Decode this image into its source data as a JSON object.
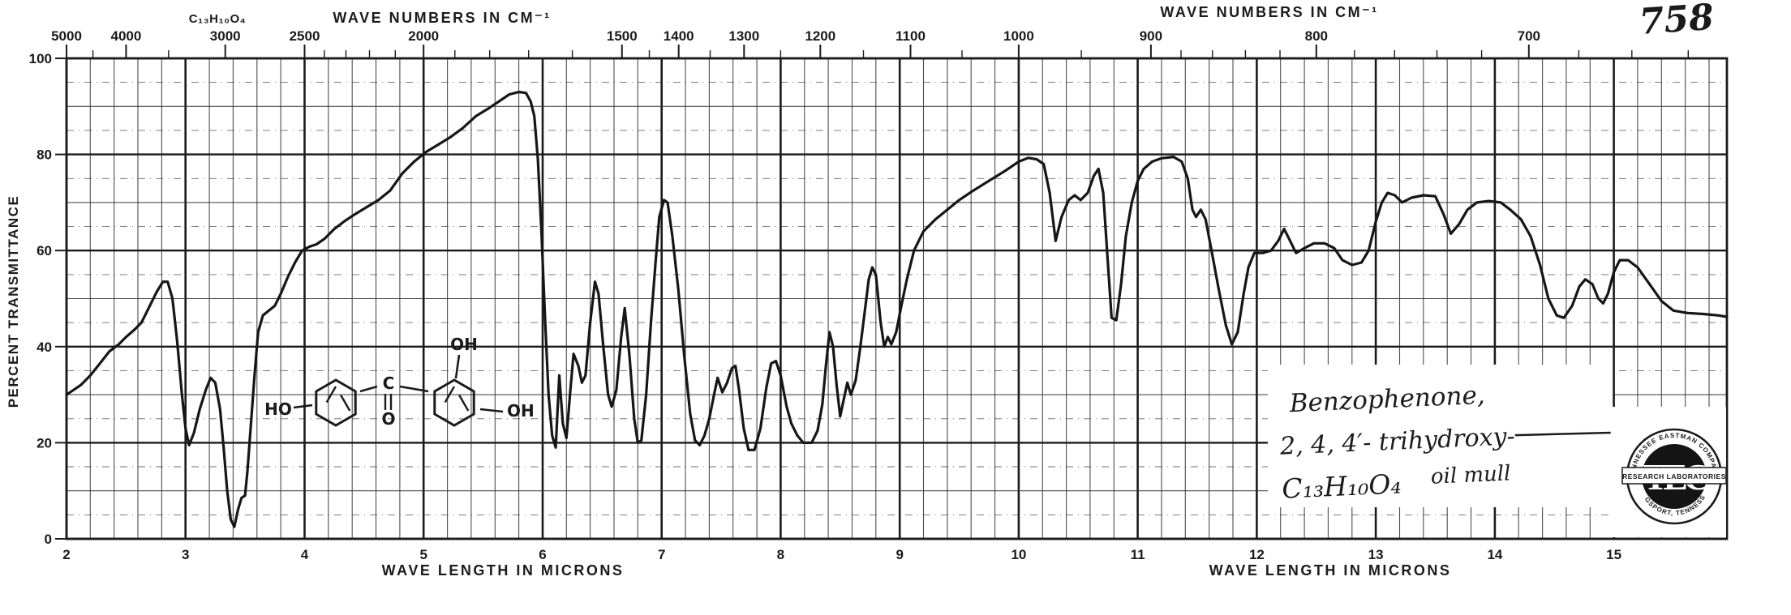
{
  "page": {
    "number": "758",
    "formula_top": "C₁₃H₁₀O₄"
  },
  "axes": {
    "x_top": {
      "label": "WAVE NUMBERS IN CM⁻¹",
      "major_ticks": [
        {
          "wn": 5000,
          "label": "5000"
        },
        {
          "wn": 4000,
          "label": "4000"
        },
        {
          "wn": 3000,
          "label": "3000"
        },
        {
          "wn": 2500,
          "label": "2500"
        },
        {
          "wn": 2000,
          "label": "2000"
        },
        {
          "wn": 1500,
          "label": "1500"
        },
        {
          "wn": 1400,
          "label": "1400"
        },
        {
          "wn": 1300,
          "label": "1300"
        },
        {
          "wn": 1200,
          "label": "1200"
        },
        {
          "wn": 1100,
          "label": "1100"
        },
        {
          "wn": 1000,
          "label": "1000"
        },
        {
          "wn": 900,
          "label": "900"
        },
        {
          "wn": 800,
          "label": "800"
        },
        {
          "wn": 700,
          "label": "700"
        }
      ],
      "minor_ticks": [
        4500,
        3500,
        2400,
        2300,
        2200,
        2100,
        1900,
        1800,
        1700,
        1600,
        1450,
        1350,
        1250,
        1150,
        1050,
        950,
        880,
        860,
        840,
        820,
        780,
        760,
        740,
        720,
        680,
        660,
        640
      ]
    },
    "x_bottom": {
      "label": "WAVE LENGTH IN MICRONS",
      "ticks": [
        "2",
        "3",
        "4",
        "5",
        "6",
        "7",
        "8",
        "9",
        "10",
        "11",
        "12",
        "13",
        "14",
        "15"
      ]
    },
    "y": {
      "label": "PERCENT TRANSMITTANCE",
      "ticks": [
        "100",
        "80",
        "60",
        "40",
        "20",
        "0"
      ]
    }
  },
  "annotation": {
    "line1": "Benzophenone,",
    "line2": "2, 4, 4′- trihydroxy-",
    "line3_formula": "C₁₃H₁₀O₄",
    "line3_note": "oil mull"
  },
  "structure": {
    "ho_left": "HO",
    "carbonyl_c": "C",
    "carbonyl_o": "O",
    "oh_top": "OH",
    "oh_right": "OH"
  },
  "stamp": {
    "arc_top": "TENNESSEE EASTMAN COMPANY",
    "band": "RESEARCH LABORATORIES",
    "arc_bottom": "KINGSPORT, TENNESSEE",
    "monogram": "TEC"
  },
  "colors": {
    "ink": "#1b1b1b",
    "grid": "#2f2f2f",
    "paper": "#ffffff"
  },
  "chart_data": {
    "type": "line",
    "title": "Infrared spectrum: Benzophenone, 2,4,4'-trihydroxy- (C13H10O4), oil mull",
    "xlabel": "WAVE LENGTH IN MICRONS",
    "x2label": "WAVE NUMBERS IN CM⁻¹",
    "ylabel": "PERCENT TRANSMITTANCE",
    "xlim": [
      2.0,
      15.95
    ],
    "ylim": [
      0,
      100
    ],
    "grid": "on",
    "x_units": "microns",
    "y_units": "percent transmittance",
    "points": [
      [
        2.0,
        30
      ],
      [
        2.06,
        31
      ],
      [
        2.12,
        32
      ],
      [
        2.2,
        34
      ],
      [
        2.28,
        36.5
      ],
      [
        2.36,
        39
      ],
      [
        2.44,
        40.5
      ],
      [
        2.5,
        42
      ],
      [
        2.57,
        43.5
      ],
      [
        2.63,
        45
      ],
      [
        2.7,
        48.5
      ],
      [
        2.76,
        51.5
      ],
      [
        2.81,
        53.5
      ],
      [
        2.85,
        53.5
      ],
      [
        2.89,
        50
      ],
      [
        2.93,
        41
      ],
      [
        2.97,
        30
      ],
      [
        3.0,
        23
      ],
      [
        3.03,
        19.5
      ],
      [
        3.07,
        22
      ],
      [
        3.12,
        27
      ],
      [
        3.17,
        31
      ],
      [
        3.21,
        33.5
      ],
      [
        3.25,
        32.5
      ],
      [
        3.29,
        27
      ],
      [
        3.32,
        19
      ],
      [
        3.35,
        10
      ],
      [
        3.38,
        4
      ],
      [
        3.41,
        2.5
      ],
      [
        3.44,
        6
      ],
      [
        3.47,
        8.5
      ],
      [
        3.5,
        9
      ],
      [
        3.52,
        14
      ],
      [
        3.55,
        24
      ],
      [
        3.58,
        34
      ],
      [
        3.61,
        43
      ],
      [
        3.65,
        46.5
      ],
      [
        3.7,
        47.5
      ],
      [
        3.75,
        48.5
      ],
      [
        3.8,
        51
      ],
      [
        3.86,
        54.5
      ],
      [
        3.92,
        57.5
      ],
      [
        3.98,
        60
      ],
      [
        4.04,
        60.8
      ],
      [
        4.1,
        61.3
      ],
      [
        4.17,
        62.5
      ],
      [
        4.25,
        64.5
      ],
      [
        4.33,
        66
      ],
      [
        4.42,
        67.5
      ],
      [
        4.52,
        69
      ],
      [
        4.62,
        70.5
      ],
      [
        4.72,
        72.5
      ],
      [
        4.82,
        76
      ],
      [
        4.92,
        78.5
      ],
      [
        5.02,
        80.5
      ],
      [
        5.12,
        82
      ],
      [
        5.22,
        83.5
      ],
      [
        5.33,
        85.5
      ],
      [
        5.44,
        88
      ],
      [
        5.54,
        89.5
      ],
      [
        5.63,
        91
      ],
      [
        5.72,
        92.5
      ],
      [
        5.8,
        93
      ],
      [
        5.86,
        92.8
      ],
      [
        5.9,
        91
      ],
      [
        5.93,
        88
      ],
      [
        5.96,
        79
      ],
      [
        5.99,
        64
      ],
      [
        6.02,
        46
      ],
      [
        6.05,
        30
      ],
      [
        6.08,
        21.5
      ],
      [
        6.11,
        19
      ],
      [
        6.14,
        34
      ],
      [
        6.17,
        24
      ],
      [
        6.2,
        21
      ],
      [
        6.23,
        30
      ],
      [
        6.26,
        38.5
      ],
      [
        6.3,
        36
      ],
      [
        6.33,
        32.5
      ],
      [
        6.36,
        34
      ],
      [
        6.4,
        45
      ],
      [
        6.44,
        53.5
      ],
      [
        6.47,
        51
      ],
      [
        6.51,
        40
      ],
      [
        6.55,
        30
      ],
      [
        6.58,
        27.5
      ],
      [
        6.62,
        31
      ],
      [
        6.66,
        42
      ],
      [
        6.69,
        48
      ],
      [
        6.73,
        38
      ],
      [
        6.77,
        25
      ],
      [
        6.8,
        20
      ],
      [
        6.83,
        20.5
      ],
      [
        6.87,
        30
      ],
      [
        6.91,
        45
      ],
      [
        6.95,
        58
      ],
      [
        6.98,
        67
      ],
      [
        7.02,
        70.5
      ],
      [
        7.05,
        70
      ],
      [
        7.09,
        63
      ],
      [
        7.14,
        52
      ],
      [
        7.19,
        38
      ],
      [
        7.24,
        26
      ],
      [
        7.28,
        20.5
      ],
      [
        7.32,
        19.5
      ],
      [
        7.36,
        21.5
      ],
      [
        7.4,
        25
      ],
      [
        7.44,
        30
      ],
      [
        7.47,
        33.5
      ],
      [
        7.51,
        30.5
      ],
      [
        7.55,
        32.5
      ],
      [
        7.59,
        35.5
      ],
      [
        7.62,
        36
      ],
      [
        7.65,
        31
      ],
      [
        7.69,
        23
      ],
      [
        7.73,
        18.5
      ],
      [
        7.78,
        18.5
      ],
      [
        7.83,
        23
      ],
      [
        7.88,
        31.5
      ],
      [
        7.92,
        36.5
      ],
      [
        7.96,
        37
      ],
      [
        8.0,
        34
      ],
      [
        8.05,
        27.5
      ],
      [
        8.09,
        24
      ],
      [
        8.14,
        21.5
      ],
      [
        8.19,
        20
      ],
      [
        8.26,
        20
      ],
      [
        8.31,
        22.5
      ],
      [
        8.35,
        28
      ],
      [
        8.38,
        36
      ],
      [
        8.41,
        43
      ],
      [
        8.44,
        40
      ],
      [
        8.47,
        32
      ],
      [
        8.5,
        25.5
      ],
      [
        8.53,
        29
      ],
      [
        8.56,
        32.5
      ],
      [
        8.59,
        30
      ],
      [
        8.63,
        33
      ],
      [
        8.67,
        40
      ],
      [
        8.71,
        48
      ],
      [
        8.74,
        54
      ],
      [
        8.77,
        56.5
      ],
      [
        8.8,
        55
      ],
      [
        8.84,
        45
      ],
      [
        8.87,
        40
      ],
      [
        8.9,
        42
      ],
      [
        8.93,
        40.5
      ],
      [
        8.97,
        43
      ],
      [
        9.01,
        48
      ],
      [
        9.06,
        54
      ],
      [
        9.12,
        60
      ],
      [
        9.2,
        64
      ],
      [
        9.3,
        66.5
      ],
      [
        9.4,
        68.5
      ],
      [
        9.5,
        70.5
      ],
      [
        9.62,
        72.5
      ],
      [
        9.75,
        74.5
      ],
      [
        9.88,
        76.5
      ],
      [
        10.0,
        78.5
      ],
      [
        10.08,
        79.3
      ],
      [
        10.15,
        79
      ],
      [
        10.21,
        78
      ],
      [
        10.26,
        72
      ],
      [
        10.31,
        62
      ],
      [
        10.36,
        67
      ],
      [
        10.42,
        70.5
      ],
      [
        10.47,
        71.5
      ],
      [
        10.52,
        70.5
      ],
      [
        10.58,
        72
      ],
      [
        10.63,
        75.5
      ],
      [
        10.67,
        77
      ],
      [
        10.71,
        72
      ],
      [
        10.75,
        57
      ],
      [
        10.78,
        46
      ],
      [
        10.82,
        45.5
      ],
      [
        10.86,
        53
      ],
      [
        10.9,
        63
      ],
      [
        10.95,
        70
      ],
      [
        11.0,
        74.5
      ],
      [
        11.05,
        77
      ],
      [
        11.12,
        78.5
      ],
      [
        11.2,
        79.2
      ],
      [
        11.3,
        79.5
      ],
      [
        11.37,
        78.5
      ],
      [
        11.42,
        75
      ],
      [
        11.46,
        68.5
      ],
      [
        11.49,
        67
      ],
      [
        11.53,
        68.5
      ],
      [
        11.57,
        66.5
      ],
      [
        11.62,
        60
      ],
      [
        11.68,
        52
      ],
      [
        11.74,
        44.5
      ],
      [
        11.79,
        40.5
      ],
      [
        11.84,
        43
      ],
      [
        11.89,
        51
      ],
      [
        11.93,
        56.5
      ],
      [
        11.98,
        59.5
      ],
      [
        12.05,
        59.5
      ],
      [
        12.12,
        60
      ],
      [
        12.18,
        62
      ],
      [
        12.23,
        64.5
      ],
      [
        12.28,
        62
      ],
      [
        12.33,
        59.5
      ],
      [
        12.4,
        60.5
      ],
      [
        12.48,
        61.5
      ],
      [
        12.57,
        61.5
      ],
      [
        12.65,
        60.5
      ],
      [
        12.72,
        58
      ],
      [
        12.8,
        57
      ],
      [
        12.88,
        57.5
      ],
      [
        12.94,
        60
      ],
      [
        13.0,
        66
      ],
      [
        13.05,
        70
      ],
      [
        13.1,
        72
      ],
      [
        13.16,
        71.5
      ],
      [
        13.22,
        70
      ],
      [
        13.3,
        71
      ],
      [
        13.4,
        71.5
      ],
      [
        13.5,
        71.3
      ],
      [
        13.57,
        67.5
      ],
      [
        13.63,
        63.5
      ],
      [
        13.7,
        65.5
      ],
      [
        13.77,
        68.5
      ],
      [
        13.85,
        70
      ],
      [
        13.95,
        70.3
      ],
      [
        14.05,
        70
      ],
      [
        14.13,
        68.5
      ],
      [
        14.22,
        66.5
      ],
      [
        14.3,
        63
      ],
      [
        14.38,
        57
      ],
      [
        14.45,
        50
      ],
      [
        14.52,
        46.5
      ],
      [
        14.58,
        46
      ],
      [
        14.65,
        48.5
      ],
      [
        14.71,
        52.5
      ],
      [
        14.76,
        54
      ],
      [
        14.82,
        53
      ],
      [
        14.87,
        50
      ],
      [
        14.91,
        49
      ],
      [
        14.95,
        51
      ],
      [
        15.0,
        55.5
      ],
      [
        15.05,
        58
      ],
      [
        15.12,
        58
      ],
      [
        15.2,
        56.5
      ],
      [
        15.3,
        53
      ],
      [
        15.4,
        49.5
      ],
      [
        15.5,
        47.5
      ],
      [
        15.62,
        47
      ],
      [
        15.75,
        46.8
      ],
      [
        15.88,
        46.5
      ],
      [
        15.95,
        46.2
      ]
    ]
  }
}
